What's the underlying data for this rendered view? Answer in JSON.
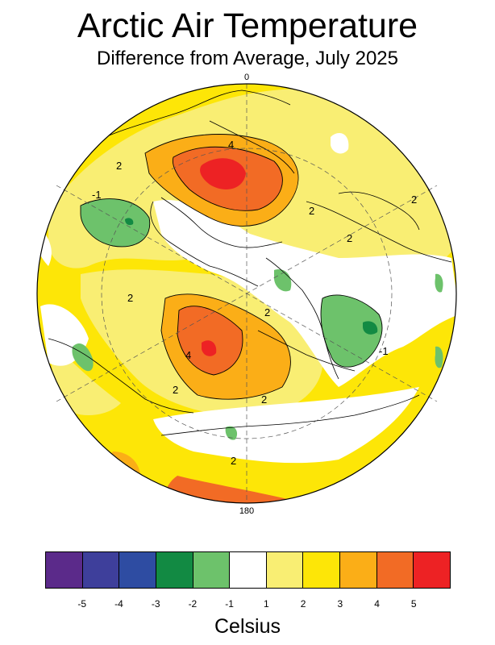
{
  "title": "Arctic Air Temperature",
  "subtitle": "Difference from Average, July 2025",
  "map": {
    "lon_top": "0",
    "lon_bottom": "180",
    "contour_labels": [
      "4",
      "2",
      "-1",
      "2",
      "2",
      "2",
      "2",
      "2",
      "4",
      "2",
      "2",
      "-1",
      "2"
    ]
  },
  "legend": {
    "colors": [
      "#5b2a8a",
      "#3e3f9b",
      "#2e4ca2",
      "#128a43",
      "#6dc26b",
      "#ffffff",
      "#f9ee73",
      "#fde607",
      "#fbae17",
      "#f26b25",
      "#ed2224"
    ],
    "ticks": [
      "-5",
      "-4",
      "-3",
      "-2",
      "-1",
      "1",
      "2",
      "3",
      "4",
      "5"
    ],
    "units": "Celsius"
  }
}
